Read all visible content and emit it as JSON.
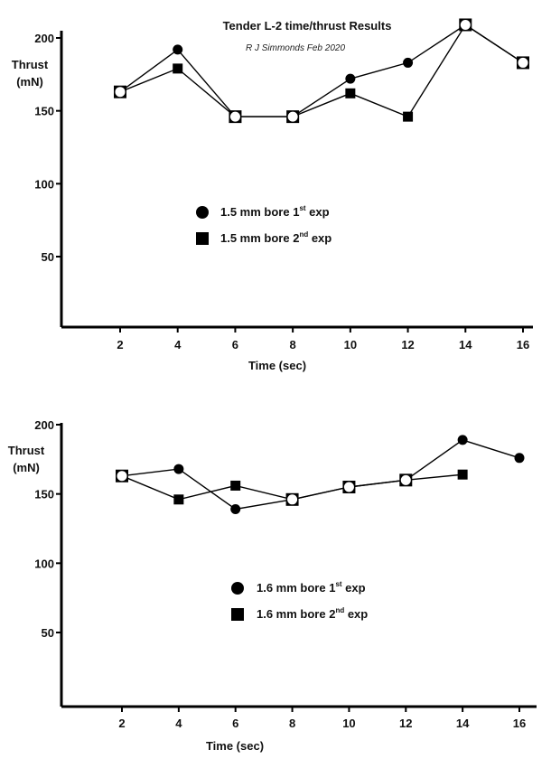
{
  "chart_data": [
    {
      "type": "line",
      "title": "Tender L-2 time/thrust Results",
      "subtitle": "R J Simmonds Feb 2020",
      "xlabel": "Time (sec)",
      "ylabel_line1": "Thrust",
      "ylabel_line2": "(mN)",
      "xlim": [
        0,
        16
      ],
      "ylim": [
        0,
        200
      ],
      "x_ticks": [
        2,
        4,
        6,
        8,
        10,
        12,
        14,
        16
      ],
      "y_ticks": [
        50,
        100,
        150,
        200
      ],
      "series": [
        {
          "marker": "circle",
          "legend": {
            "pre": "1.5 mm bore 1",
            "sup": "st",
            "post": " exp"
          },
          "points": [
            [
              2,
              163
            ],
            [
              4,
              192
            ],
            [
              6,
              146
            ],
            [
              8,
              146
            ],
            [
              10,
              172
            ],
            [
              12,
              183
            ],
            [
              14,
              209
            ],
            [
              16,
              183
            ]
          ]
        },
        {
          "marker": "square",
          "legend": {
            "pre": "1.5 mm bore 2",
            "sup": "nd",
            "post": " exp"
          },
          "points": [
            [
              2,
              163
            ],
            [
              4,
              179
            ],
            [
              6,
              146
            ],
            [
              8,
              146
            ],
            [
              10,
              162
            ],
            [
              12,
              146
            ],
            [
              14,
              209
            ],
            [
              16,
              183
            ]
          ]
        }
      ]
    },
    {
      "type": "line",
      "title": "",
      "subtitle": "",
      "xlabel": "Time (sec)",
      "ylabel_line1": "Thrust",
      "ylabel_line2": "(mN)",
      "xlim": [
        0,
        16
      ],
      "ylim": [
        0,
        200
      ],
      "x_ticks": [
        2,
        4,
        6,
        8,
        10,
        12,
        14,
        16
      ],
      "y_ticks": [
        50,
        100,
        150,
        200
      ],
      "series": [
        {
          "marker": "circle",
          "legend": {
            "pre": "1.6 mm bore 1",
            "sup": "st",
            "post": " exp"
          },
          "points": [
            [
              2,
              163
            ],
            [
              4,
              168
            ],
            [
              6,
              139
            ],
            [
              8,
              146
            ],
            [
              10,
              155
            ],
            [
              12,
              160
            ],
            [
              14,
              189
            ],
            [
              16,
              176
            ]
          ]
        },
        {
          "marker": "square",
          "legend": {
            "pre": "1.6 mm bore 2",
            "sup": "nd",
            "post": " exp"
          },
          "points": [
            [
              2,
              163
            ],
            [
              4,
              146
            ],
            [
              6,
              156
            ],
            [
              8,
              146
            ],
            [
              10,
              155
            ],
            [
              12,
              160
            ],
            [
              14,
              164
            ]
          ]
        }
      ]
    }
  ]
}
